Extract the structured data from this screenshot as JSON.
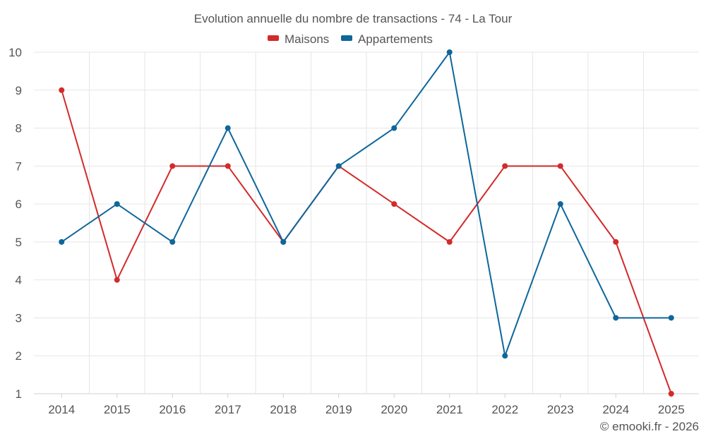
{
  "chart_data": {
    "type": "line",
    "title": "Evolution annuelle du nombre de transactions - 74 - La Tour",
    "xlabel": "",
    "ylabel": "",
    "categories": [
      "2014",
      "2015",
      "2016",
      "2017",
      "2018",
      "2019",
      "2020",
      "2021",
      "2022",
      "2023",
      "2024",
      "2025"
    ],
    "ylim": [
      1,
      10
    ],
    "yticks": [
      1,
      2,
      3,
      4,
      5,
      6,
      7,
      8,
      9,
      10
    ],
    "grid": true,
    "legend_position": "top-center",
    "series": [
      {
        "name": "Maisons",
        "color": "#d32a2a",
        "values": [
          9,
          4,
          7,
          7,
          5,
          7,
          6,
          5,
          7,
          7,
          5,
          1
        ]
      },
      {
        "name": "Appartements",
        "color": "#0e669b",
        "values": [
          5,
          6,
          5,
          8,
          5,
          7,
          8,
          10,
          2,
          6,
          3,
          3
        ]
      }
    ],
    "credit": "© emooki.fr - 2026"
  }
}
